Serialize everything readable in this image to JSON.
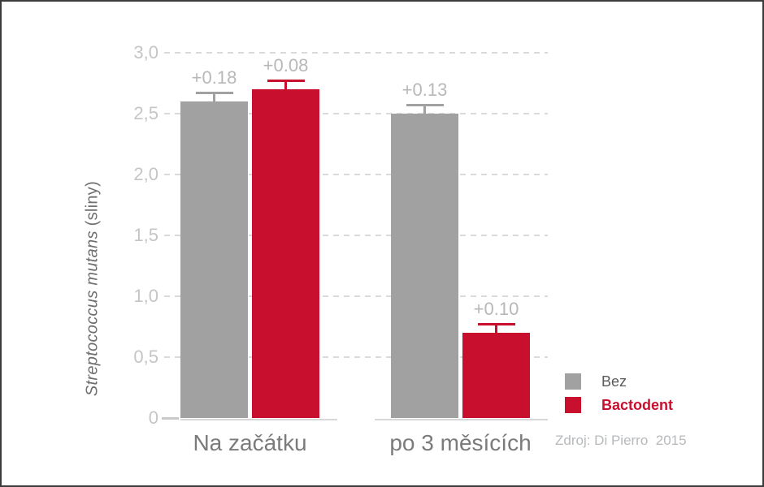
{
  "chart_data": {
    "type": "bar",
    "title": "",
    "categories": [
      "Na začátku",
      "po 3 měsících"
    ],
    "series": [
      {
        "name": "Bez",
        "color": "#a1a1a1",
        "values": [
          2.6,
          2.5
        ],
        "errors": [
          0.18,
          0.13
        ],
        "error_labels": [
          "+0.18",
          "+0.13"
        ]
      },
      {
        "name": "Bactodent",
        "color": "#c8102e",
        "values": [
          2.7,
          0.7
        ],
        "errors": [
          0.08,
          0.1
        ],
        "error_labels": [
          "+0.08",
          "+0.10"
        ]
      }
    ],
    "ylabel_italic": "Streptococcus mutans",
    "ylabel_plain": " (sliny)",
    "yticks": [
      {
        "value": 3.0,
        "label": "3,0"
      },
      {
        "value": 2.5,
        "label": "2,5"
      },
      {
        "value": 2.0,
        "label": "2,0"
      },
      {
        "value": 1.5,
        "label": "1,5"
      },
      {
        "value": 1.0,
        "label": "1,0"
      },
      {
        "value": 0.5,
        "label": "0,5"
      },
      {
        "value": 0.0,
        "label": "0"
      }
    ],
    "ylim": [
      0,
      3.0
    ],
    "grid": "horizontal-dashed",
    "legend_position": "bottom-right",
    "source": "Zdroj: Di Pierro  2015"
  },
  "colors": {
    "gridline": "#dadada",
    "tick_label": "#c5c5c5",
    "error_label": "#b8b8b8",
    "category_label": "#7b7b7b",
    "axis_title": "#6f6f6f",
    "legend_text": "#58595b",
    "source_text": "#b7babc",
    "frame_border": "#3b3b3b"
  }
}
